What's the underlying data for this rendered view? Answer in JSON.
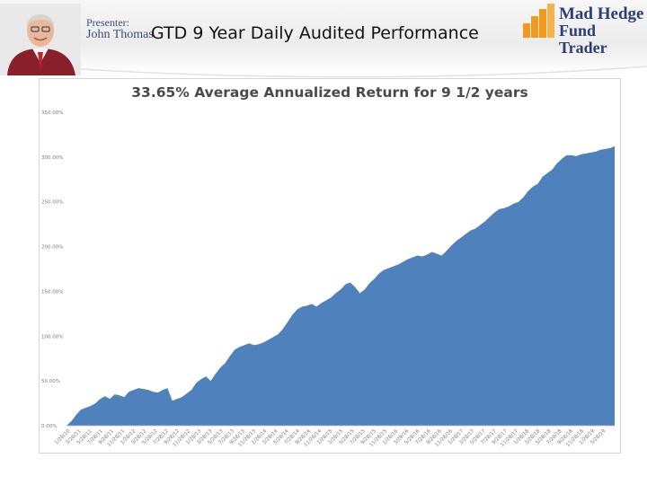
{
  "header": {
    "presenter_label": "Presenter:",
    "presenter_name": "John Thomas",
    "slide_title": "GTD 9 Year Daily Audited Performance",
    "logo_line1": "Mad Hedge",
    "logo_line2": "Fund Trader"
  },
  "colors": {
    "area_fill": "#4f81bd",
    "logo_orange": "#f29a1f",
    "brand_navy": "#2c3f72"
  },
  "chart_data": {
    "type": "area",
    "title": "33.65% Average Annualized Return for 9 1/2 years",
    "xlabel": "",
    "ylabel": "",
    "ylim": [
      0,
      350
    ],
    "y_ticks": [
      0,
      50,
      100,
      150,
      200,
      250,
      300,
      350
    ],
    "y_tick_labels": [
      "0.00%",
      "50.00%",
      "100.00%",
      "150.00%",
      "200.00%",
      "250.00%",
      "300.00%",
      "350.00%"
    ],
    "x_tick_labels": [
      "1/28/10",
      "2/28/10",
      "3/28/11",
      "4/28/11",
      "5/28/11",
      "6/28/11",
      "7/28/11",
      "8/28/11",
      "9/28/11",
      "10/28/11",
      "11/28/11",
      "12/28/11",
      "1/28/12",
      "2/28/12",
      "3/28/12",
      "4/28/12",
      "5/28/12",
      "6/28/12",
      "7/28/12",
      "8/28/12",
      "9/28/12",
      "10/28/12",
      "11/28/12",
      "12/28/12",
      "1/28/13",
      "2/28/13",
      "3/28/13",
      "4/28/13",
      "5/28/13",
      "6/28/13",
      "7/28/13",
      "8/28/13",
      "9/28/13",
      "10/28/13",
      "11/28/13",
      "12/28/13",
      "1/28/14",
      "2/28/14",
      "3/28/14",
      "4/28/14",
      "5/28/14",
      "6/28/14",
      "7/28/14",
      "8/28/14",
      "9/28/14",
      "10/28/14",
      "11/28/14",
      "12/28/14",
      "1/28/15",
      "2/28/15",
      "3/28/15",
      "4/28/15",
      "5/28/15",
      "6/28/15",
      "7/28/15",
      "8/28/15",
      "9/28/15",
      "10/28/15",
      "11/28/15",
      "12/28/15",
      "1/28/16",
      "2/28/16",
      "3/28/16",
      "4/28/16",
      "5/28/16",
      "6/28/16",
      "7/28/16",
      "8/28/16",
      "9/28/16",
      "10/28/16",
      "11/28/16",
      "12/28/16",
      "1/28/17",
      "2/28/17",
      "3/28/17",
      "4/28/17",
      "5/28/17",
      "6/28/17",
      "7/28/17",
      "8/28/17",
      "9/28/17",
      "10/28/17",
      "11/28/17",
      "12/28/17",
      "1/28/18",
      "2/28/18",
      "3/28/18",
      "4/28/18",
      "5/28/18",
      "6/28/18",
      "7/28/18",
      "8/28/18",
      "9/28/18",
      "10/28/18",
      "11/28/18",
      "12/28/18",
      "1/28/19",
      "2/28/19",
      "3/28/19",
      "4/28/19"
    ],
    "x_tick_every": 2,
    "series": [
      {
        "values": [
          0,
          5,
          12,
          18,
          20,
          22,
          25,
          30,
          33,
          30,
          35,
          34,
          32,
          38,
          40,
          42,
          41,
          40,
          38,
          37,
          40,
          42,
          28,
          30,
          32,
          36,
          40,
          48,
          52,
          55,
          50,
          58,
          65,
          70,
          78,
          85,
          88,
          90,
          92,
          90,
          91,
          93,
          96,
          99,
          102,
          108,
          116,
          124,
          130,
          133,
          134,
          136,
          133,
          137,
          140,
          143,
          148,
          152,
          158,
          160,
          155,
          148,
          152,
          159,
          164,
          170,
          174,
          176,
          178,
          180,
          183,
          186,
          188,
          190,
          189,
          191,
          194,
          192,
          190,
          195,
          201,
          206,
          210,
          214,
          218,
          220,
          224,
          228,
          233,
          238,
          242,
          243,
          245,
          248,
          250,
          255,
          262,
          267,
          270,
          278,
          282,
          286,
          293,
          298,
          302,
          302,
          301,
          303,
          304,
          305,
          306,
          308,
          309,
          310,
          312
        ]
      }
    ],
    "grid": false,
    "legend": "none"
  }
}
